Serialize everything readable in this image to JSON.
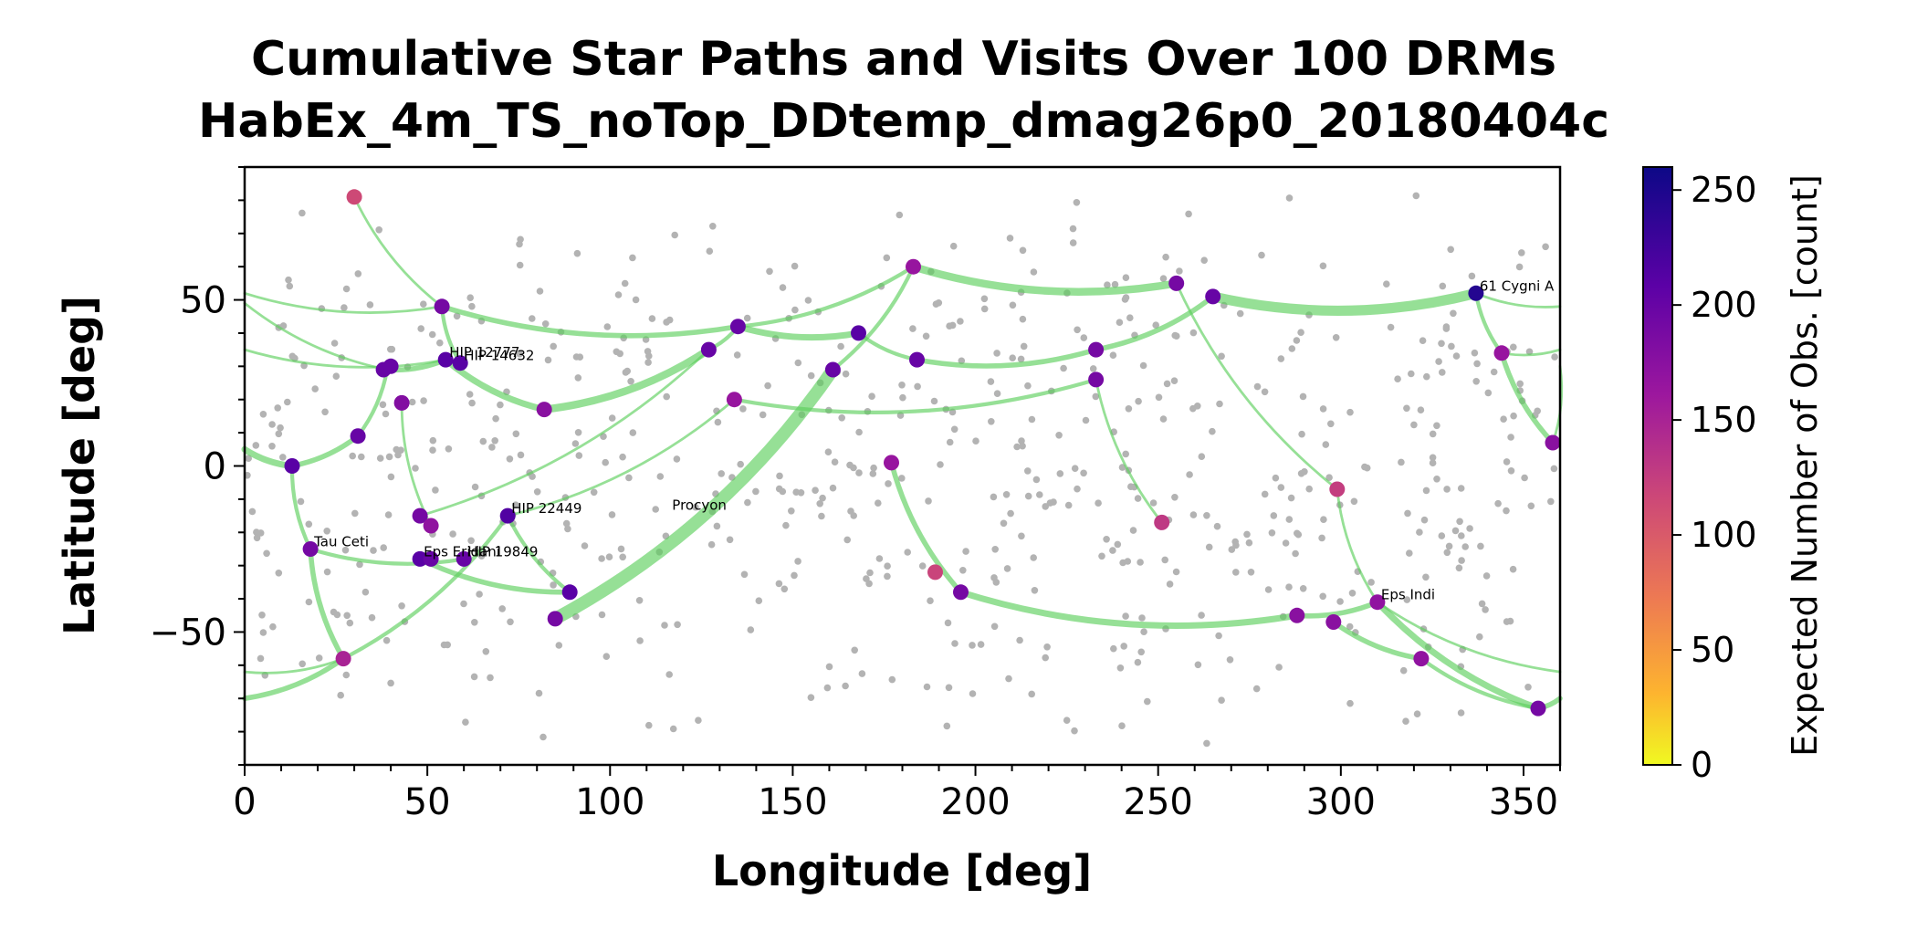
{
  "chart_data": {
    "type": "scatter",
    "title": "Cumulative Star Paths and Visits Over 100 DRMs",
    "subtitle": "HabEx_4m_TS_noTop_DDtemp_dmag26p0_20180404c",
    "xlabel": "Longitude [deg]",
    "ylabel": "Latitude [deg]",
    "xlim": [
      0,
      360
    ],
    "ylim": [
      -90,
      90
    ],
    "xticks": [
      0,
      50,
      100,
      150,
      200,
      250,
      300,
      350
    ],
    "yticks": [
      -50,
      0,
      50
    ],
    "grid": false,
    "colorbar": {
      "label": "Expected Number of Obs. [count]",
      "ticks": [
        0,
        50,
        100,
        150,
        200,
        250
      ],
      "range": [
        0,
        260
      ],
      "colormap": "plasma_r"
    },
    "colors": {
      "background_star": "#b3b3b3",
      "path": "#5ecf5e",
      "axis": "#000000"
    },
    "target_stars": [
      {
        "lon": 30,
        "lat": 81,
        "count": 115
      },
      {
        "lon": 54,
        "lat": 48,
        "count": 190
      },
      {
        "lon": 38,
        "lat": 29,
        "count": 200
      },
      {
        "lon": 40,
        "lat": 30,
        "count": 200
      },
      {
        "lon": 55,
        "lat": 32,
        "count": 210,
        "label": "HIP 12777"
      },
      {
        "lon": 59,
        "lat": 31,
        "count": 210,
        "label": "HIP 14632"
      },
      {
        "lon": 43,
        "lat": 19,
        "count": 180
      },
      {
        "lon": 82,
        "lat": 17,
        "count": 175
      },
      {
        "lon": 31,
        "lat": 9,
        "count": 200
      },
      {
        "lon": 13,
        "lat": 0,
        "count": 210
      },
      {
        "lon": 48,
        "lat": -15,
        "count": 190
      },
      {
        "lon": 72,
        "lat": -15,
        "count": 215,
        "label": "HIP 22449"
      },
      {
        "lon": 18,
        "lat": -25,
        "count": 190,
        "label": "Tau Ceti"
      },
      {
        "lon": 48,
        "lat": -28,
        "count": 210,
        "label": "Eps Eridani"
      },
      {
        "lon": 51,
        "lat": -18,
        "count": 170
      },
      {
        "lon": 51,
        "lat": -28,
        "count": 200
      },
      {
        "lon": 60,
        "lat": -28,
        "count": 200,
        "label": "HIP 19849"
      },
      {
        "lon": 89,
        "lat": -38,
        "count": 210
      },
      {
        "lon": 85,
        "lat": -46,
        "count": 190
      },
      {
        "lon": 27,
        "lat": -58,
        "count": 150
      },
      {
        "lon": 127,
        "lat": 35,
        "count": 200
      },
      {
        "lon": 135,
        "lat": 42,
        "count": 200
      },
      {
        "lon": 134,
        "lat": 20,
        "count": 165
      },
      {
        "lon": 161,
        "lat": 29,
        "count": 200
      },
      {
        "lon": 168,
        "lat": 40,
        "count": 210
      },
      {
        "lon": 184,
        "lat": 32,
        "count": 200
      },
      {
        "lon": 183,
        "lat": 60,
        "count": 165
      },
      {
        "lon": 177,
        "lat": 1,
        "count": 165
      },
      {
        "lon": 189,
        "lat": -32,
        "count": 120
      },
      {
        "lon": 196,
        "lat": -38,
        "count": 190
      },
      {
        "lon": 233,
        "lat": 35,
        "count": 190
      },
      {
        "lon": 233,
        "lat": 26,
        "count": 190
      },
      {
        "lon": 255,
        "lat": 55,
        "count": 190
      },
      {
        "lon": 265,
        "lat": 51,
        "count": 200
      },
      {
        "lon": 251,
        "lat": -17,
        "count": 130
      },
      {
        "lon": 299,
        "lat": -7,
        "count": 125
      },
      {
        "lon": 337,
        "lat": 52,
        "count": 245,
        "label": "61 Cygni A"
      },
      {
        "lon": 344,
        "lat": 34,
        "count": 165
      },
      {
        "lon": 358,
        "lat": 7,
        "count": 175
      },
      {
        "lon": 288,
        "lat": -45,
        "count": 175
      },
      {
        "lon": 298,
        "lat": -47,
        "count": 175
      },
      {
        "lon": 310,
        "lat": -41,
        "count": 170,
        "label": "Eps Indi"
      },
      {
        "lon": 322,
        "lat": -58,
        "count": 170
      },
      {
        "lon": 354,
        "lat": -73,
        "count": 190
      },
      {
        "lon": 116,
        "lat": -14,
        "count": null,
        "label": "Procyon"
      }
    ],
    "paths": [
      {
        "from": [
          13,
          0
        ],
        "to": [
          31,
          9
        ],
        "width": 4
      },
      {
        "from": [
          31,
          9
        ],
        "to": [
          39,
          29
        ],
        "width": 3
      },
      {
        "from": [
          39,
          29
        ],
        "to": [
          55,
          32
        ],
        "width": 4
      },
      {
        "from": [
          55,
          32
        ],
        "to": [
          82,
          17
        ],
        "width": 5
      },
      {
        "from": [
          54,
          48
        ],
        "to": [
          59,
          31
        ],
        "width": 3
      },
      {
        "from": [
          30,
          81
        ],
        "to": [
          54,
          48
        ],
        "width": 2
      },
      {
        "from": [
          82,
          17
        ],
        "to": [
          127,
          35
        ],
        "width": 6
      },
      {
        "from": [
          127,
          35
        ],
        "to": [
          135,
          42
        ],
        "width": 3
      },
      {
        "from": [
          135,
          42
        ],
        "to": [
          168,
          40
        ],
        "width": 5
      },
      {
        "from": [
          168,
          40
        ],
        "to": [
          184,
          32
        ],
        "width": 3
      },
      {
        "from": [
          184,
          32
        ],
        "to": [
          233,
          35
        ],
        "width": 4
      },
      {
        "from": [
          233,
          35
        ],
        "to": [
          265,
          51
        ],
        "width": 4
      },
      {
        "from": [
          265,
          51
        ],
        "to": [
          337,
          52
        ],
        "width": 8
      },
      {
        "from": [
          337,
          52
        ],
        "to": [
          344,
          34
        ],
        "width": 3
      },
      {
        "from": [
          344,
          34
        ],
        "to": [
          358,
          7
        ],
        "width": 4
      },
      {
        "from": [
          183,
          60
        ],
        "to": [
          255,
          55
        ],
        "width": 6
      },
      {
        "from": [
          135,
          42
        ],
        "to": [
          183,
          60
        ],
        "width": 3
      },
      {
        "from": [
          85,
          -46
        ],
        "to": [
          161,
          29
        ],
        "width": 10
      },
      {
        "from": [
          161,
          29
        ],
        "to": [
          183,
          60
        ],
        "width": 3
      },
      {
        "from": [
          177,
          1
        ],
        "to": [
          196,
          -38
        ],
        "width": 4
      },
      {
        "from": [
          196,
          -38
        ],
        "to": [
          288,
          -45
        ],
        "width": 5
      },
      {
        "from": [
          288,
          -45
        ],
        "to": [
          310,
          -41
        ],
        "width": 4
      },
      {
        "from": [
          310,
          -41
        ],
        "to": [
          354,
          -73
        ],
        "width": 5
      },
      {
        "from": [
          13,
          0
        ],
        "to": [
          18,
          -25
        ],
        "width": 3
      },
      {
        "from": [
          18,
          -25
        ],
        "to": [
          27,
          -58
        ],
        "width": 4
      },
      {
        "from": [
          27,
          -58
        ],
        "to": [
          72,
          -15
        ],
        "width": 3
      },
      {
        "from": [
          48,
          -28
        ],
        "to": [
          89,
          -38
        ],
        "width": 4
      },
      {
        "from": [
          72,
          -15
        ],
        "to": [
          89,
          -38
        ],
        "width": 3
      },
      {
        "from": [
          18,
          -25
        ],
        "to": [
          60,
          -28
        ],
        "width": 3
      },
      {
        "from": [
          43,
          19
        ],
        "to": [
          51,
          -18
        ],
        "width": 2
      },
      {
        "from": [
          0,
          5
        ],
        "to": [
          13,
          0
        ],
        "width": 5
      },
      {
        "from": [
          0,
          -70
        ],
        "to": [
          27,
          -58
        ],
        "width": 4
      },
      {
        "from": [
          233,
          26
        ],
        "to": [
          251,
          -17
        ],
        "width": 2
      },
      {
        "from": [
          255,
          55
        ],
        "to": [
          299,
          -7
        ],
        "width": 2
      },
      {
        "from": [
          299,
          -7
        ],
        "to": [
          310,
          -41
        ],
        "width": 2
      },
      {
        "from": [
          298,
          -47
        ],
        "to": [
          322,
          -58
        ],
        "width": 4
      },
      {
        "from": [
          322,
          -58
        ],
        "to": [
          354,
          -73
        ],
        "width": 3
      },
      {
        "from": [
          134,
          20
        ],
        "to": [
          233,
          26
        ],
        "width": 3
      },
      {
        "from": [
          0,
          49
        ],
        "to": [
          39,
          29
        ],
        "width": 2
      },
      {
        "from": [
          0,
          35
        ],
        "to": [
          55,
          32
        ],
        "width": 2
      },
      {
        "from": [
          0,
          52
        ],
        "to": [
          54,
          48
        ],
        "width": 2
      },
      {
        "from": [
          54,
          48
        ],
        "to": [
          135,
          42
        ],
        "width": 4
      },
      {
        "from": [
          358,
          7
        ],
        "to": [
          360,
          30
        ],
        "width": 2
      },
      {
        "from": [
          337,
          52
        ],
        "to": [
          360,
          48
        ],
        "width": 2
      },
      {
        "from": [
          344,
          34
        ],
        "to": [
          360,
          35
        ],
        "width": 2
      },
      {
        "from": [
          354,
          -73
        ],
        "to": [
          360,
          -70
        ],
        "width": 4
      },
      {
        "from": [
          310,
          -41
        ],
        "to": [
          360,
          -62
        ],
        "width": 2
      },
      {
        "from": [
          0,
          -62
        ],
        "to": [
          27,
          -58
        ],
        "width": 2
      },
      {
        "from": [
          72,
          -15
        ],
        "to": [
          134,
          20
        ],
        "width": 2
      },
      {
        "from": [
          48,
          -15
        ],
        "to": [
          127,
          35
        ],
        "width": 2
      }
    ]
  }
}
